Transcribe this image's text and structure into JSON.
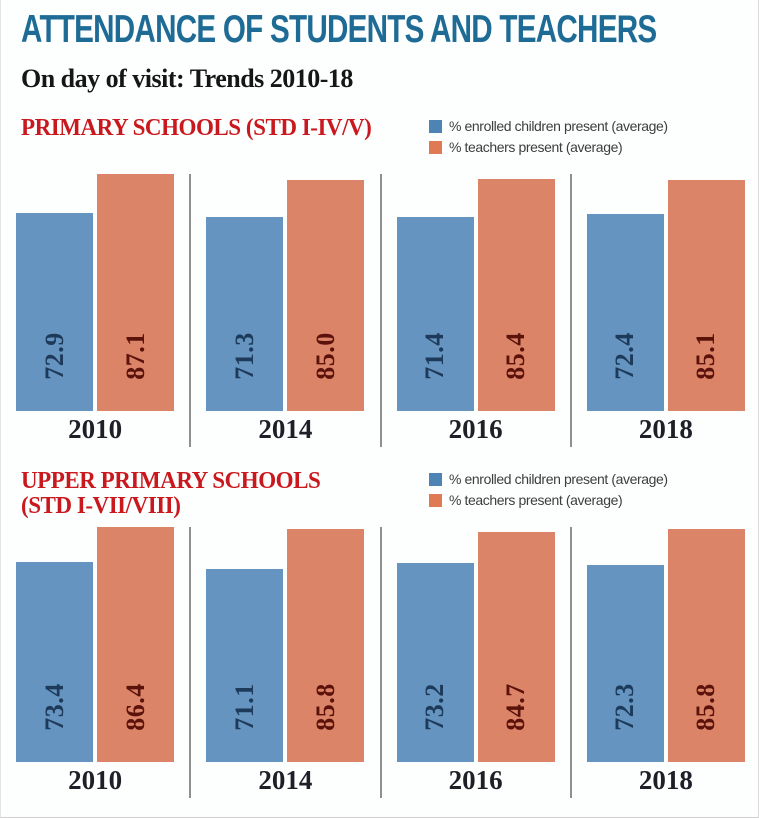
{
  "header": {
    "title": "ATTENDANCE OF STUDENTS AND TEACHERS",
    "subtitle": "On day of visit: Trends 2010-18"
  },
  "legend": {
    "students_label": "% enrolled children present (average)",
    "teachers_label": "% teachers present (average)"
  },
  "colors": {
    "title_blue": "#1e6b96",
    "section_red": "#c9191e",
    "students_bar": "#6494bf",
    "teachers_bar": "#dc8468",
    "students_value_text": "#1d3a5a",
    "teachers_value_text": "#5a120b",
    "legend_students_swatch": "#4e84b4",
    "legend_teachers_swatch": "#e07a55",
    "divider_gray": "#8f8f8f"
  },
  "chart_data": [
    {
      "type": "bar",
      "title": "PRIMARY SCHOOLS (STD I-IV/V)",
      "title_lines": [
        "PRIMARY SCHOOLS (STD I-IV/V)"
      ],
      "categories": [
        "2010",
        "2014",
        "2016",
        "2018"
      ],
      "series": [
        {
          "name": "% enrolled children present (average)",
          "values": [
            72.9,
            71.3,
            71.4,
            72.4
          ]
        },
        {
          "name": "% teachers present (average)",
          "values": [
            87.1,
            85.0,
            85.4,
            85.1
          ]
        }
      ],
      "ylim": [
        0,
        100
      ],
      "grid": false,
      "legend_position": "top-right",
      "value_labels": "rotated-90-inside-bar"
    },
    {
      "type": "bar",
      "title": "UPPER PRIMARY SCHOOLS (STD I-VII/VIII)",
      "title_lines": [
        "UPPER PRIMARY SCHOOLS",
        "(STD I-VII/VIII)"
      ],
      "categories": [
        "2010",
        "2014",
        "2016",
        "2018"
      ],
      "series": [
        {
          "name": "% enrolled children present (average)",
          "values": [
            73.4,
            71.1,
            73.2,
            72.3
          ]
        },
        {
          "name": "% teachers present (average)",
          "values": [
            86.4,
            85.8,
            84.7,
            85.8
          ]
        }
      ],
      "ylim": [
        0,
        100
      ],
      "grid": false,
      "legend_position": "top-right",
      "value_labels": "rotated-90-inside-bar"
    }
  ]
}
